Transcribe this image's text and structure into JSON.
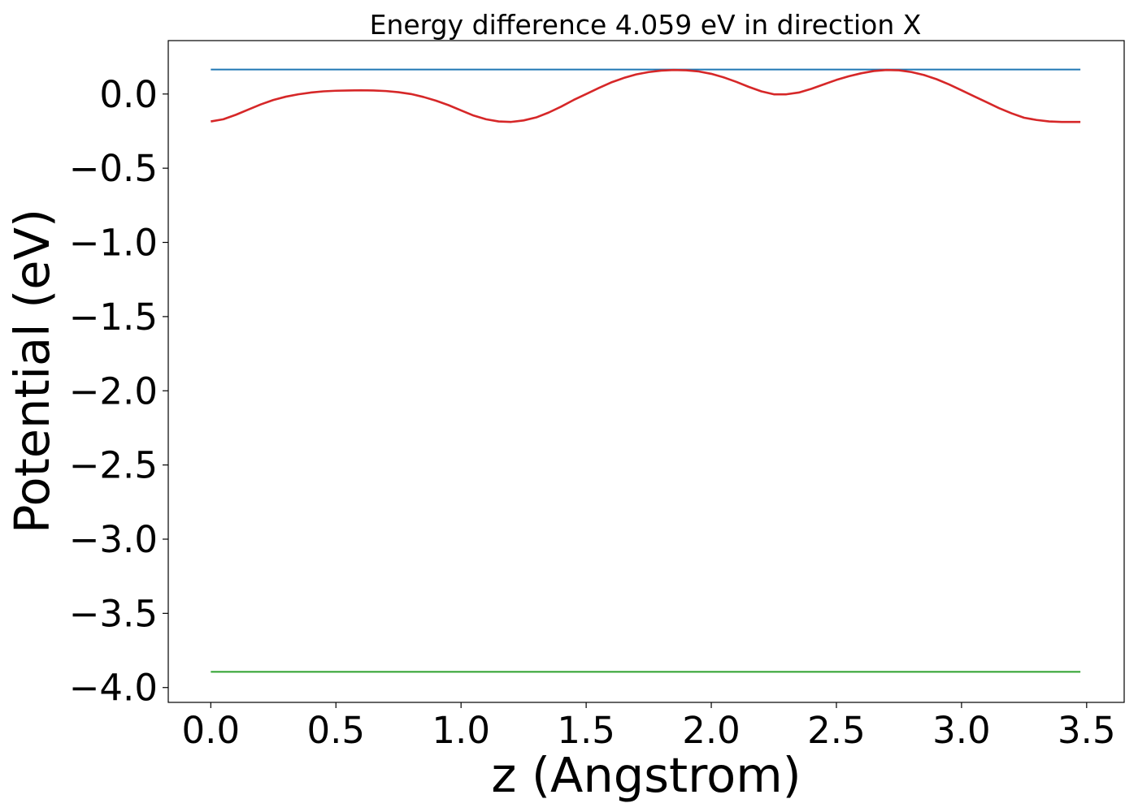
{
  "chart_data": {
    "type": "line",
    "title": "Energy difference 4.059 eV in direction X",
    "xlabel": "z (Angstrom)",
    "ylabel": "Potential (eV)",
    "xlim": [
      -0.17,
      3.65
    ],
    "ylim": [
      -4.1,
      0.36
    ],
    "xticks": [
      0.0,
      0.5,
      1.0,
      1.5,
      2.0,
      2.5,
      3.0,
      3.5
    ],
    "xtick_labels": [
      "0.0",
      "0.5",
      "1.0",
      "1.5",
      "2.0",
      "2.5",
      "3.0",
      "3.5"
    ],
    "yticks": [
      0.0,
      -0.5,
      -1.0,
      -1.5,
      -2.0,
      -2.5,
      -3.0,
      -3.5,
      -4.0
    ],
    "ytick_labels": [
      "0.0",
      "−0.5",
      "−1.0",
      "−1.5",
      "−2.0",
      "−2.5",
      "−3.0",
      "−3.5",
      "−4.0"
    ],
    "grid": false,
    "series": [
      {
        "color": "#1f77b4",
        "x": [
          0.0,
          3.475
        ],
        "y": [
          0.165,
          0.165
        ]
      },
      {
        "color": "#2ca02c",
        "x": [
          0.0,
          3.475
        ],
        "y": [
          -3.894,
          -3.894
        ]
      },
      {
        "color": "#d62728",
        "x": [
          0.0,
          0.05,
          0.1,
          0.15,
          0.2,
          0.25,
          0.3,
          0.35,
          0.4,
          0.45,
          0.5,
          0.55,
          0.6,
          0.65,
          0.7,
          0.75,
          0.8,
          0.85,
          0.9,
          0.95,
          1.0,
          1.05,
          1.1,
          1.15,
          1.2,
          1.25,
          1.3,
          1.35,
          1.4,
          1.45,
          1.5,
          1.55,
          1.6,
          1.65,
          1.7,
          1.75,
          1.8,
          1.85,
          1.9,
          1.95,
          2.0,
          2.05,
          2.1,
          2.15,
          2.2,
          2.25,
          2.3,
          2.35,
          2.4,
          2.45,
          2.5,
          2.55,
          2.6,
          2.65,
          2.7,
          2.75,
          2.8,
          2.85,
          2.9,
          2.95,
          3.0,
          3.05,
          3.1,
          3.15,
          3.2,
          3.25,
          3.3,
          3.35,
          3.4,
          3.45,
          3.475
        ],
        "y": [
          -0.185,
          -0.17,
          -0.14,
          -0.105,
          -0.07,
          -0.04,
          -0.018,
          -0.002,
          0.01,
          0.018,
          0.022,
          0.024,
          0.025,
          0.024,
          0.02,
          0.012,
          0.0,
          -0.02,
          -0.045,
          -0.075,
          -0.11,
          -0.145,
          -0.17,
          -0.185,
          -0.188,
          -0.178,
          -0.158,
          -0.125,
          -0.085,
          -0.04,
          0.0,
          0.04,
          0.078,
          0.108,
          0.132,
          0.148,
          0.158,
          0.162,
          0.16,
          0.152,
          0.136,
          0.112,
          0.082,
          0.048,
          0.018,
          -0.002,
          -0.002,
          0.01,
          0.035,
          0.065,
          0.095,
          0.12,
          0.14,
          0.155,
          0.162,
          0.16,
          0.148,
          0.128,
          0.1,
          0.065,
          0.025,
          -0.015,
          -0.055,
          -0.095,
          -0.13,
          -0.16,
          -0.175,
          -0.185,
          -0.188,
          -0.188,
          -0.188
        ]
      }
    ]
  }
}
